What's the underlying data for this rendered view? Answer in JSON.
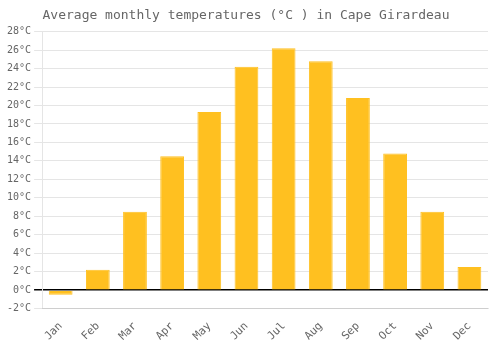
{
  "chart_data": {
    "type": "bar",
    "title": "Average monthly temperatures (°C ) in Cape Girardeau",
    "categories": [
      "Jan",
      "Feb",
      "Mar",
      "Apr",
      "May",
      "Jun",
      "Jul",
      "Aug",
      "Sep",
      "Oct",
      "Nov",
      "Dec"
    ],
    "values": [
      -0.5,
      2.2,
      8.5,
      14.5,
      19.3,
      24.2,
      26.2,
      24.8,
      20.8,
      14.8,
      8.5,
      2.5
    ],
    "color": "#FFC020",
    "ylim": [
      -2,
      28
    ],
    "yticks": [
      {
        "value": -2,
        "label": "-2°C"
      },
      {
        "value": 0,
        "label": "0°C"
      },
      {
        "value": 2,
        "label": "2°C"
      },
      {
        "value": 4,
        "label": "4°C"
      },
      {
        "value": 6,
        "label": "6°C"
      },
      {
        "value": 8,
        "label": "8°C"
      },
      {
        "value": 10,
        "label": "10°C"
      },
      {
        "value": 12,
        "label": "12°C"
      },
      {
        "value": 14,
        "label": "14°C"
      },
      {
        "value": 16,
        "label": "16°C"
      },
      {
        "value": 18,
        "label": "18°C"
      },
      {
        "value": 20,
        "label": "20°C"
      },
      {
        "value": 22,
        "label": "22°C"
      },
      {
        "value": 24,
        "label": "24°C"
      },
      {
        "value": 26,
        "label": "26°C"
      },
      {
        "value": 28,
        "label": "28°C"
      }
    ],
    "grid": true
  }
}
